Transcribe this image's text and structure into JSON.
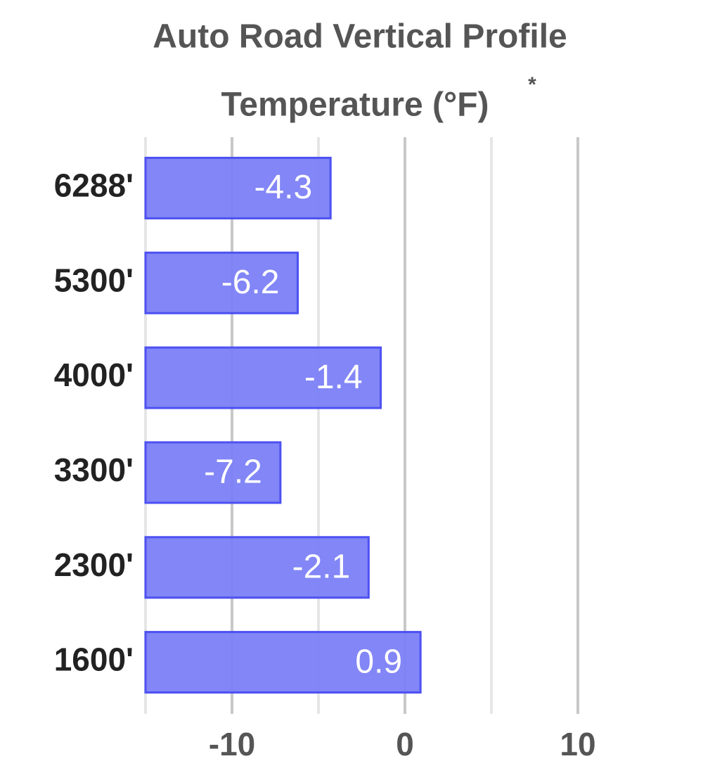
{
  "chart_data": {
    "type": "hbar",
    "title": "Auto Road Vertical Profile",
    "subtitle": "Temperature (°F)",
    "subtitle_mark": "*",
    "categories": [
      "6288'",
      "5300'",
      "4000'",
      "3300'",
      "2300'",
      "1600'"
    ],
    "values": [
      -4.3,
      -6.2,
      -1.4,
      -7.2,
      -2.1,
      0.9
    ],
    "color": "#7b7ff5",
    "edge_color": "#4d51f2",
    "xlim": [
      -15,
      10
    ],
    "xticks": [
      -10,
      0,
      10
    ],
    "minor_xticks": [
      -15,
      -5,
      5
    ],
    "grid": true
  }
}
